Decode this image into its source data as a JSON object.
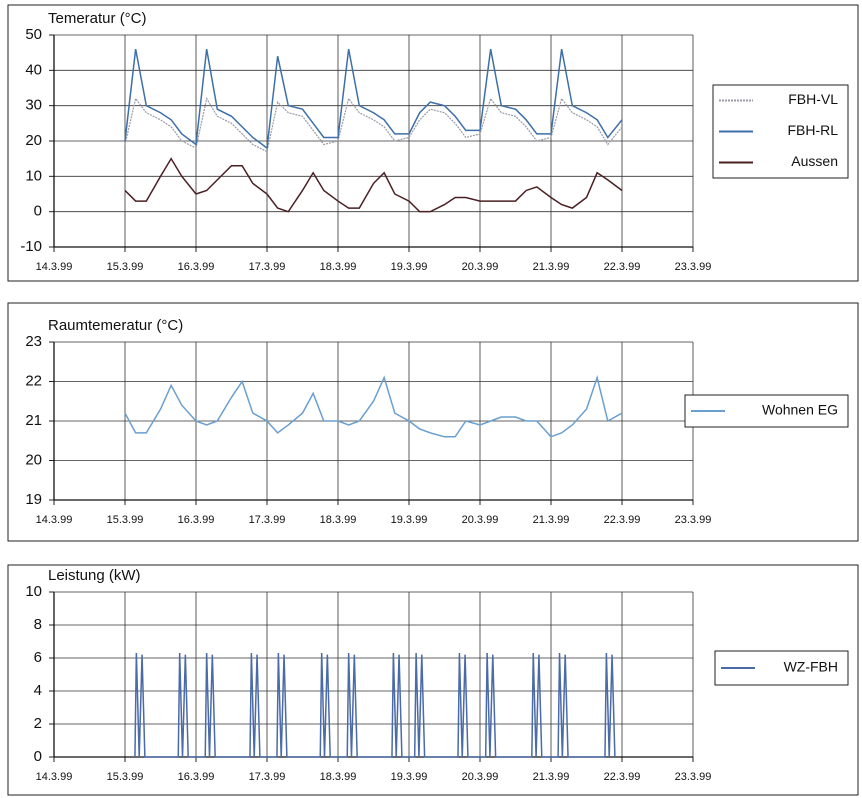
{
  "chart_data": [
    {
      "type": "line",
      "title": "Temeratur (°C)",
      "x": [
        15,
        15.15,
        15.3,
        15.5,
        15.65,
        15.8,
        16,
        16.15,
        16.3,
        16.5,
        16.65,
        16.8,
        17,
        17.15,
        17.3,
        17.5,
        17.65,
        17.8,
        18,
        18.15,
        18.3,
        18.5,
        18.65,
        18.8,
        19,
        19.15,
        19.3,
        19.5,
        19.65,
        19.8,
        20,
        20.15,
        20.3,
        20.5,
        20.65,
        20.8,
        21,
        21.15,
        21.3,
        21.5,
        21.65,
        21.8,
        22
      ],
      "series": [
        {
          "name": "FBH-VL",
          "color": "#9a9aa8",
          "values": [
            19,
            32,
            28,
            26,
            24,
            20,
            18,
            32,
            27,
            25,
            22,
            19,
            17,
            31,
            28,
            27,
            23,
            19,
            20,
            32,
            28,
            26,
            24,
            20,
            21,
            26,
            29,
            28,
            25,
            21,
            22,
            32,
            28,
            27,
            24,
            20,
            21,
            32,
            28,
            26,
            24,
            19,
            24
          ]
        },
        {
          "name": "FBH-RL",
          "color": "#3d6fa8",
          "values": [
            20,
            46,
            30,
            28,
            26,
            22,
            19,
            46,
            29,
            27,
            24,
            21,
            18,
            44,
            30,
            29,
            25,
            21,
            21,
            46,
            30,
            28,
            26,
            22,
            22,
            28,
            31,
            30,
            27,
            23,
            23,
            46,
            30,
            29,
            26,
            22,
            22,
            46,
            30,
            28,
            26,
            21,
            26
          ]
        },
        {
          "name": "Aussen",
          "color": "#4a1f22",
          "values": [
            6,
            3,
            3,
            10,
            15,
            10,
            5,
            6,
            9,
            13,
            13,
            8,
            5,
            1,
            0,
            6,
            11,
            6,
            3,
            1,
            1,
            8,
            11,
            5,
            3,
            0,
            0,
            2,
            4,
            4,
            3,
            3,
            3,
            3,
            6,
            7,
            4,
            2,
            1,
            4,
            11,
            9,
            6
          ]
        }
      ],
      "xlim": [
        14,
        23
      ],
      "xticks": [
        {
          "value": 14,
          "label": "14.3.99"
        },
        {
          "value": 15,
          "label": "15.3.99"
        },
        {
          "value": 16,
          "label": "16.3.99"
        },
        {
          "value": 17,
          "label": "17.3.99"
        },
        {
          "value": 18,
          "label": "18.3.99"
        },
        {
          "value": 19,
          "label": "19.3.99"
        },
        {
          "value": 20,
          "label": "20.3.99"
        },
        {
          "value": 21,
          "label": "21.3.99"
        },
        {
          "value": 22,
          "label": "22.3.99"
        },
        {
          "value": 23,
          "label": "23.3.99"
        }
      ],
      "ylim": [
        -10,
        50
      ],
      "yticks": [
        -10,
        0,
        10,
        20,
        30,
        40,
        50
      ],
      "grid": true,
      "legend": "right"
    },
    {
      "type": "line",
      "title": "Raumtemeratur (°C)",
      "x": [
        15,
        15.15,
        15.3,
        15.5,
        15.65,
        15.8,
        16,
        16.15,
        16.3,
        16.5,
        16.65,
        16.8,
        17,
        17.15,
        17.3,
        17.5,
        17.65,
        17.8,
        18,
        18.15,
        18.3,
        18.5,
        18.65,
        18.8,
        19,
        19.15,
        19.3,
        19.5,
        19.65,
        19.8,
        20,
        20.15,
        20.3,
        20.5,
        20.65,
        20.8,
        21,
        21.15,
        21.3,
        21.5,
        21.65,
        21.8,
        22
      ],
      "series": [
        {
          "name": "Wohnen EG",
          "color": "#6a9fd0",
          "values": [
            21.2,
            20.7,
            20.7,
            21.3,
            21.9,
            21.4,
            21.0,
            20.9,
            21.0,
            21.6,
            22.0,
            21.2,
            21.0,
            20.7,
            20.9,
            21.2,
            21.7,
            21.0,
            21.0,
            20.9,
            21.0,
            21.5,
            22.1,
            21.2,
            21.0,
            20.8,
            20.7,
            20.6,
            20.6,
            21.0,
            20.9,
            21.0,
            21.1,
            21.1,
            21.0,
            21.0,
            20.6,
            20.7,
            20.9,
            21.3,
            22.1,
            21.0,
            21.2
          ]
        }
      ],
      "xlim": [
        14,
        23
      ],
      "xticks": [
        {
          "value": 14,
          "label": "14.3.99"
        },
        {
          "value": 15,
          "label": "15.3.99"
        },
        {
          "value": 16,
          "label": "16.3.99"
        },
        {
          "value": 17,
          "label": "17.3.99"
        },
        {
          "value": 18,
          "label": "18.3.99"
        },
        {
          "value": 19,
          "label": "19.3.99"
        },
        {
          "value": 20,
          "label": "20.3.99"
        },
        {
          "value": 21,
          "label": "21.3.99"
        },
        {
          "value": 22,
          "label": "22.3.99"
        },
        {
          "value": 23,
          "label": "23.3.99"
        }
      ],
      "ylim": [
        19,
        23
      ],
      "yticks": [
        19,
        20,
        21,
        22,
        23
      ],
      "grid": true,
      "legend": "right"
    },
    {
      "type": "line",
      "title": "Leistung (kW)",
      "x": [
        15.14,
        15.16,
        15.2,
        15.24,
        15.28,
        15.75,
        15.77,
        15.81,
        15.85,
        15.89,
        16.13,
        16.15,
        16.19,
        16.23,
        16.27,
        16.76,
        16.78,
        16.82,
        16.86,
        16.9,
        17.14,
        17.16,
        17.2,
        17.24,
        17.28,
        17.75,
        17.77,
        17.81,
        17.85,
        17.89,
        18.13,
        18.15,
        18.19,
        18.23,
        18.27,
        18.76,
        18.78,
        18.82,
        18.86,
        18.9,
        19.08,
        19.1,
        19.14,
        19.18,
        19.22,
        19.69,
        19.71,
        19.75,
        19.79,
        19.83,
        20.08,
        20.1,
        20.14,
        20.18,
        20.22,
        20.73,
        20.75,
        20.79,
        20.83,
        20.87,
        21.1,
        21.12,
        21.16,
        21.2,
        21.24,
        21.76,
        21.78,
        21.82,
        21.86,
        21.9
      ],
      "series": [
        {
          "name": "WZ-FBH",
          "color": "#4a6aa8",
          "values": [
            0,
            6.3,
            0,
            6.2,
            0,
            0,
            6.3,
            0,
            6.2,
            0,
            0,
            6.3,
            0,
            6.2,
            0,
            0,
            6.3,
            0,
            6.2,
            0,
            0,
            6.3,
            0,
            6.2,
            0,
            0,
            6.3,
            0,
            6.2,
            0,
            0,
            6.3,
            0,
            6.2,
            0,
            0,
            6.3,
            0,
            6.2,
            0,
            0,
            6.3,
            0,
            6.2,
            0,
            0,
            6.3,
            0,
            6.2,
            0,
            0,
            6.3,
            0,
            6.2,
            0,
            0,
            6.3,
            0,
            6.2,
            0,
            0,
            6.3,
            0,
            6.2,
            0,
            0,
            6.3,
            0,
            6.2,
            0
          ]
        }
      ],
      "xlim": [
        14,
        23
      ],
      "xticks": [
        {
          "value": 14,
          "label": "14.3.99"
        },
        {
          "value": 15,
          "label": "15.3.99"
        },
        {
          "value": 16,
          "label": "16.3.99"
        },
        {
          "value": 17,
          "label": "17.3.99"
        },
        {
          "value": 18,
          "label": "18.3.99"
        },
        {
          "value": 19,
          "label": "19.3.99"
        },
        {
          "value": 20,
          "label": "20.3.99"
        },
        {
          "value": 21,
          "label": "21.3.99"
        },
        {
          "value": 22,
          "label": "22.3.99"
        },
        {
          "value": 23,
          "label": "23.3.99"
        }
      ],
      "ylim": [
        0,
        10
      ],
      "yticks": [
        0,
        2,
        4,
        6,
        8,
        10
      ],
      "grid": true,
      "legend": "right"
    }
  ]
}
